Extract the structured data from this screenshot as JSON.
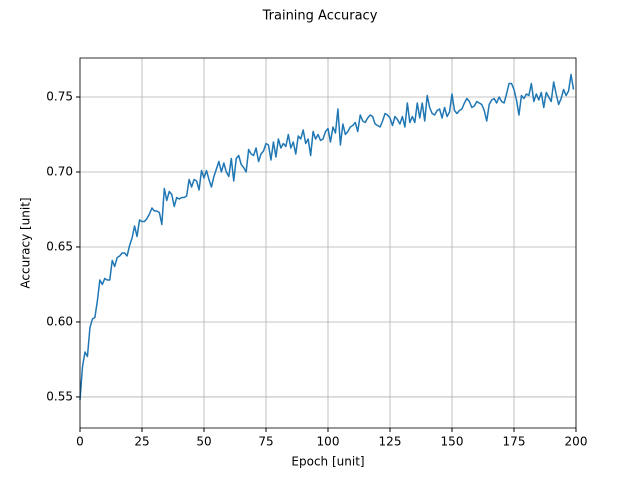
{
  "chart_data": {
    "type": "line",
    "title": "Training Accuracy",
    "x_label": "Epoch [unit]",
    "y_label": "Accuracy [unit]",
    "x": [
      0,
      1,
      2,
      3,
      4,
      5,
      6,
      7,
      8,
      9,
      10,
      11,
      12,
      13,
      14,
      15,
      16,
      17,
      18,
      19,
      20,
      21,
      22,
      23,
      24,
      25,
      26,
      27,
      28,
      29,
      30,
      31,
      32,
      33,
      34,
      35,
      36,
      37,
      38,
      39,
      40,
      41,
      42,
      43,
      44,
      45,
      46,
      47,
      48,
      49,
      50,
      51,
      52,
      53,
      54,
      55,
      56,
      57,
      58,
      59,
      60,
      61,
      62,
      63,
      64,
      65,
      66,
      67,
      68,
      69,
      70,
      71,
      72,
      73,
      74,
      75,
      76,
      77,
      78,
      79,
      80,
      81,
      82,
      83,
      84,
      85,
      86,
      87,
      88,
      89,
      90,
      91,
      92,
      93,
      94,
      95,
      96,
      97,
      98,
      99,
      100,
      101,
      102,
      103,
      104,
      105,
      106,
      107,
      108,
      109,
      110,
      111,
      112,
      113,
      114,
      115,
      116,
      117,
      118,
      119,
      120,
      121,
      122,
      123,
      124,
      125,
      126,
      127,
      128,
      129,
      130,
      131,
      132,
      133,
      134,
      135,
      136,
      137,
      138,
      139,
      140,
      141,
      142,
      143,
      144,
      145,
      146,
      147,
      148,
      149,
      150,
      151,
      152,
      153,
      154,
      155,
      156,
      157,
      158,
      159,
      160,
      161,
      162,
      163,
      164,
      165,
      166,
      167,
      168,
      169,
      170,
      171,
      172,
      173,
      174,
      175,
      176,
      177,
      178,
      179,
      180,
      181,
      182,
      183,
      184,
      185,
      186,
      187,
      188,
      189,
      190,
      191,
      192,
      193,
      194,
      195,
      196,
      197,
      198,
      199
    ],
    "values": [
      0.548,
      0.57,
      0.58,
      0.577,
      0.596,
      0.602,
      0.603,
      0.614,
      0.628,
      0.625,
      0.629,
      0.628,
      0.628,
      0.641,
      0.637,
      0.643,
      0.644,
      0.646,
      0.646,
      0.644,
      0.651,
      0.656,
      0.664,
      0.657,
      0.668,
      0.667,
      0.667,
      0.669,
      0.672,
      0.676,
      0.674,
      0.674,
      0.673,
      0.665,
      0.689,
      0.681,
      0.687,
      0.685,
      0.677,
      0.683,
      0.682,
      0.683,
      0.683,
      0.684,
      0.695,
      0.69,
      0.695,
      0.694,
      0.688,
      0.701,
      0.696,
      0.701,
      0.695,
      0.69,
      0.697,
      0.702,
      0.707,
      0.7,
      0.706,
      0.7,
      0.697,
      0.709,
      0.694,
      0.709,
      0.711,
      0.705,
      0.703,
      0.7,
      0.715,
      0.712,
      0.711,
      0.716,
      0.707,
      0.712,
      0.714,
      0.719,
      0.718,
      0.708,
      0.72,
      0.71,
      0.722,
      0.716,
      0.719,
      0.717,
      0.725,
      0.716,
      0.72,
      0.712,
      0.724,
      0.722,
      0.728,
      0.719,
      0.722,
      0.711,
      0.727,
      0.722,
      0.725,
      0.721,
      0.722,
      0.727,
      0.729,
      0.72,
      0.73,
      0.726,
      0.742,
      0.718,
      0.732,
      0.725,
      0.727,
      0.73,
      0.731,
      0.733,
      0.727,
      0.738,
      0.734,
      0.733,
      0.736,
      0.738,
      0.737,
      0.732,
      0.731,
      0.73,
      0.734,
      0.739,
      0.738,
      0.736,
      0.731,
      0.737,
      0.735,
      0.732,
      0.737,
      0.73,
      0.746,
      0.733,
      0.737,
      0.733,
      0.746,
      0.736,
      0.746,
      0.734,
      0.751,
      0.743,
      0.739,
      0.738,
      0.741,
      0.742,
      0.736,
      0.743,
      0.737,
      0.74,
      0.752,
      0.741,
      0.739,
      0.741,
      0.742,
      0.746,
      0.749,
      0.747,
      0.743,
      0.744,
      0.747,
      0.746,
      0.745,
      0.741,
      0.734,
      0.745,
      0.748,
      0.749,
      0.746,
      0.75,
      0.747,
      0.746,
      0.752,
      0.759,
      0.759,
      0.755,
      0.748,
      0.738,
      0.751,
      0.749,
      0.752,
      0.751,
      0.759,
      0.747,
      0.752,
      0.748,
      0.753,
      0.743,
      0.753,
      0.75,
      0.747,
      0.76,
      0.752,
      0.745,
      0.749,
      0.755,
      0.751,
      0.754,
      0.765,
      0.755
    ],
    "color": "#1f77b4",
    "xlim": [
      0,
      200
    ],
    "xticks": [
      0,
      25,
      50,
      75,
      100,
      125,
      150,
      175,
      200
    ],
    "ylim": [
      0.5293,
      0.776
    ],
    "yticks": [
      0.55,
      {
        "value": 0.6,
        "label": "0.60"
      },
      0.65,
      {
        "value": 0.7,
        "label": "0.70"
      },
      0.75
    ],
    "grid": true
  }
}
